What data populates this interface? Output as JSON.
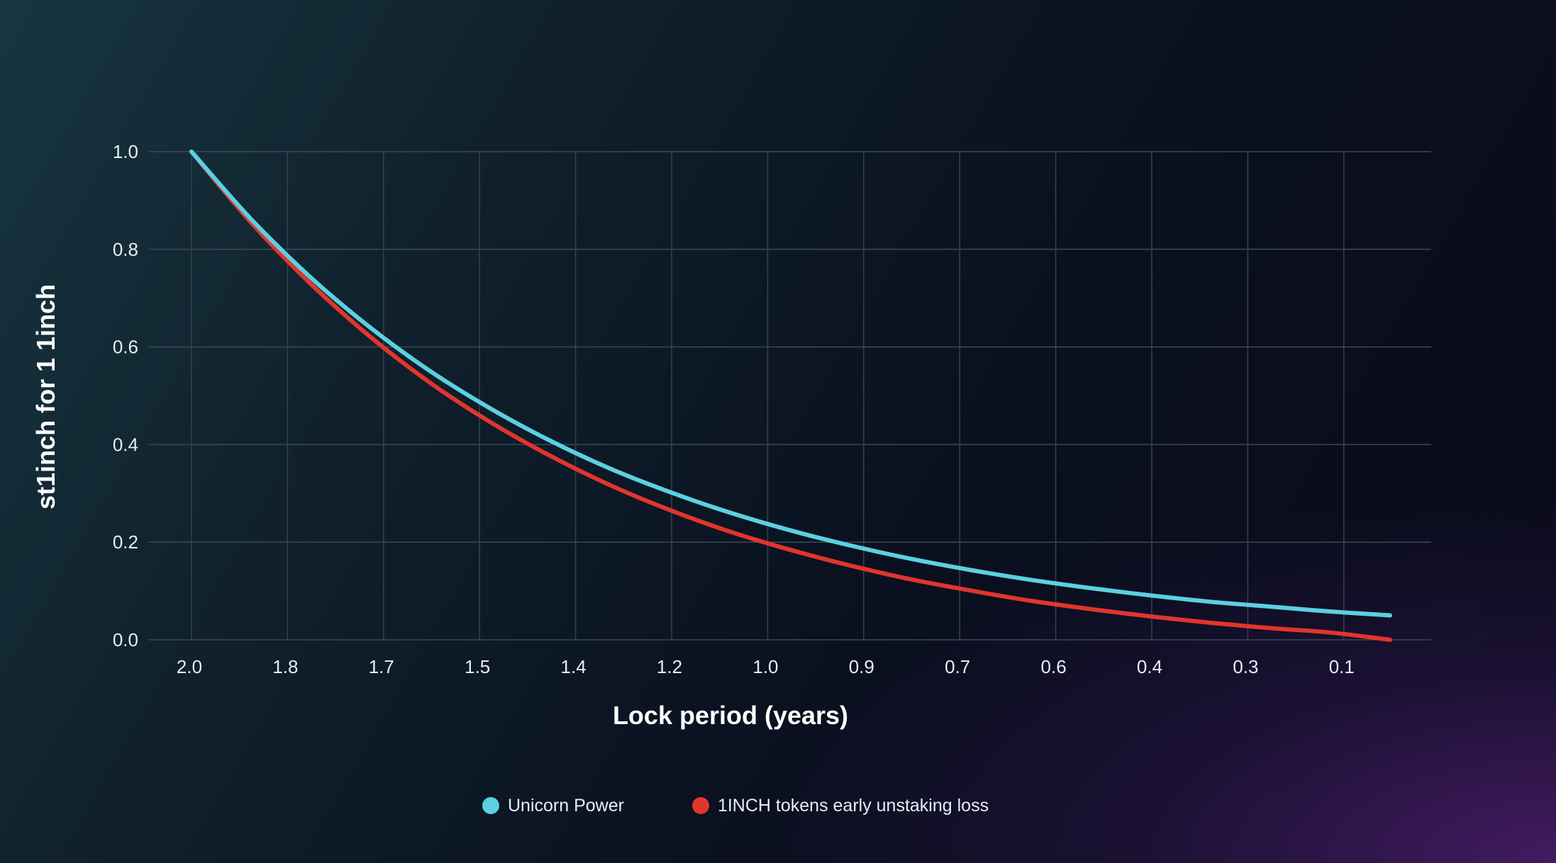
{
  "chart_data": {
    "type": "line",
    "title": "",
    "xlabel": "Lock period (years)",
    "ylabel": "st1inch for 1 1inch",
    "x_ticks": [
      "2.0",
      "1.8",
      "1.7",
      "1.5",
      "1.4",
      "1.2",
      "1.0",
      "0.9",
      "0.7",
      "0.6",
      "0.4",
      "0.3",
      "0.1"
    ],
    "y_ticks": [
      "0.0",
      "0.2",
      "0.4",
      "0.6",
      "0.8",
      "1.0"
    ],
    "xlim": [
      2.0,
      0.0
    ],
    "ylim": [
      0,
      1
    ],
    "grid": true,
    "legend_position": "bottom-center",
    "x": [
      2.0,
      1.9,
      1.8,
      1.7,
      1.6,
      1.5,
      1.4,
      1.3,
      1.2,
      1.1,
      1.0,
      0.9,
      0.8,
      0.7,
      0.6,
      0.5,
      0.4,
      0.3,
      0.2,
      0.1,
      0.0
    ],
    "series": [
      {
        "name": "Unicorn Power",
        "color": "#5bd0e0",
        "values": [
          1.0,
          0.861,
          0.741,
          0.638,
          0.549,
          0.473,
          0.407,
          0.35,
          0.302,
          0.26,
          0.224,
          0.193,
          0.166,
          0.143,
          0.123,
          0.106,
          0.091,
          0.078,
          0.068,
          0.058,
          0.05
        ]
      },
      {
        "name": "1INCH tokens early unstaking loss",
        "color": "#e0352d",
        "values": [
          1.0,
          0.854,
          0.728,
          0.619,
          0.525,
          0.445,
          0.376,
          0.316,
          0.265,
          0.221,
          0.184,
          0.152,
          0.124,
          0.101,
          0.08,
          0.063,
          0.048,
          0.035,
          0.024,
          0.015,
          0.0
        ]
      }
    ]
  }
}
